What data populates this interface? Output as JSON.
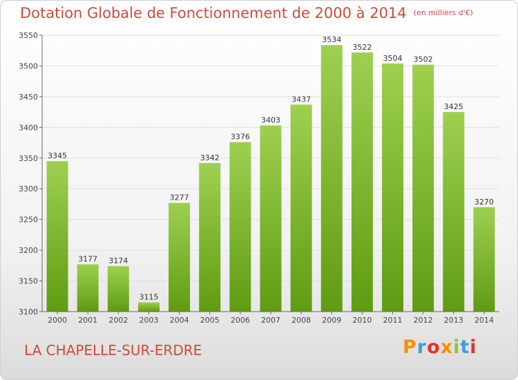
{
  "header": {
    "title": "Dotation Globale de Fonctionnement de 2000 à 2014",
    "unit": "(en milliers d'€)"
  },
  "footer": {
    "city": "LA CHAPELLE-SUR-ERDRE",
    "brand_letters": [
      "P",
      "r",
      "o",
      "x",
      "i",
      "t",
      "i"
    ],
    "brand_colors": [
      "#f39200",
      "#3aa0dc",
      "#e2302b",
      "#f39200",
      "#8cc43c",
      "#3aa0dc",
      "#e2302b"
    ]
  },
  "chart_data": {
    "type": "bar",
    "categories": [
      "2000",
      "2001",
      "2002",
      "2003",
      "2004",
      "2005",
      "2006",
      "2007",
      "2008",
      "2009",
      "2010",
      "2011",
      "2012",
      "2013",
      "2014"
    ],
    "values": [
      3345,
      3177,
      3174,
      3115,
      3277,
      3342,
      3376,
      3403,
      3437,
      3534,
      3522,
      3504,
      3502,
      3425,
      3270
    ],
    "ylim": [
      3100,
      3550
    ],
    "yticks": [
      3100,
      3150,
      3200,
      3250,
      3300,
      3350,
      3400,
      3450,
      3500,
      3550
    ],
    "grid": true,
    "colors": {
      "bar_top": "#9ed050",
      "bar_bottom": "#5f9c12",
      "grid": "#e0e0e0",
      "axis": "#666666"
    }
  }
}
